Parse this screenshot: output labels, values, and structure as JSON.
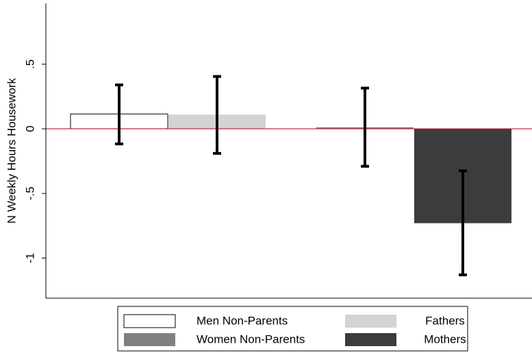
{
  "chart_data": {
    "type": "bar",
    "ylabel": "N Weekly Hours Housework",
    "ylim": [
      -1.31,
      0.97
    ],
    "yticks": [
      {
        "value": -1,
        "label": "-1"
      },
      {
        "value": -0.5,
        "label": "-.5"
      },
      0,
      {
        "value": 0.5,
        "label": ".5"
      }
    ],
    "hline": 0,
    "hline_color": "#c8102e",
    "series": [
      {
        "name": "Men Non-Parents",
        "color": "#ffffff",
        "edgecolor": "#000000",
        "values": [
          0.115
        ],
        "lower": [
          -0.117
        ],
        "upper": [
          0.34
        ]
      },
      {
        "name": "Fathers",
        "color": "#d3d3d3",
        "values": [
          0.11
        ],
        "lower": [
          -0.19
        ],
        "upper": [
          0.405
        ]
      },
      {
        "name": "Women Non-Parents",
        "color": "#808080",
        "values": [
          0.012
        ],
        "lower": [
          -0.29
        ],
        "upper": [
          0.315
        ]
      },
      {
        "name": "Mothers",
        "color": "#3c3c3c",
        "values": [
          -0.73
        ],
        "lower": [
          -1.13
        ],
        "upper": [
          -0.325
        ]
      }
    ],
    "errorbar_color": "#000000"
  }
}
